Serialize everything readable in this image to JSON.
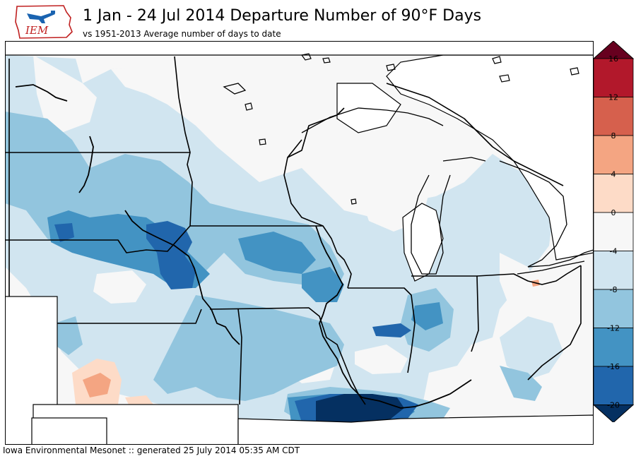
{
  "logo": {
    "text": "IEM"
  },
  "title": "1 Jan - 24 Jul 2014 Departure Number of 90°F Days",
  "subtitle": "vs 1951-2013 Average number of days to date",
  "footer": "Iowa Environmental Mesonet :: generated 25 July 2014 05:35 AM CDT",
  "legend": {
    "ticks": [
      "16",
      "12",
      "8",
      "4",
      "0",
      "-4",
      "-8",
      "-12",
      "-16",
      "-20"
    ],
    "colors": [
      "#67001f",
      "#b2182b",
      "#d6604d",
      "#f4a582",
      "#fddbc7",
      "#f7f7f7",
      "#d1e5f0",
      "#92c5de",
      "#4393c3",
      "#2166ac",
      "#053061"
    ]
  },
  "map_colors": {
    "neutral": "#f7f7f7",
    "light_blue": "#d1e5f0",
    "mid_blue": "#92c5de",
    "blue": "#4393c3",
    "dark_blue": "#2166ac",
    "navy": "#053061",
    "light_red": "#fddbc7",
    "red": "#f4a582"
  }
}
